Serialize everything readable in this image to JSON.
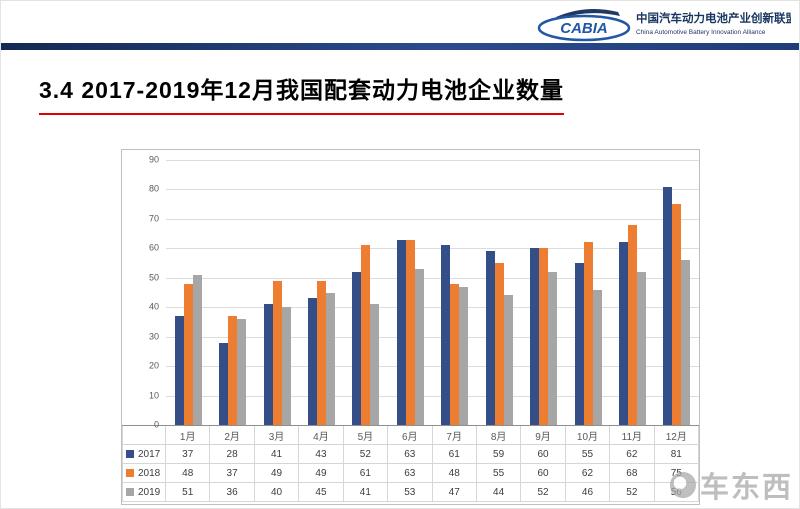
{
  "header": {
    "logo_acronym": "CABIA",
    "org_name_cn": "中国汽车动力电池产业创新联盟",
    "org_name_en": "China Automotive Battery Innovation Alliance"
  },
  "title": "3.4 2017-2019年12月我国配套动力电池企业数量",
  "chart_data": {
    "type": "bar",
    "title": "2017-2019年12月我国配套动力电池企业数量",
    "categories": [
      "1月",
      "2月",
      "3月",
      "4月",
      "5月",
      "6月",
      "7月",
      "8月",
      "9月",
      "10月",
      "11月",
      "12月"
    ],
    "series": [
      {
        "name": "2017",
        "color": "#344e87",
        "values": [
          37,
          28,
          41,
          43,
          52,
          63,
          61,
          59,
          60,
          55,
          62,
          81
        ]
      },
      {
        "name": "2018",
        "color": "#ed7d31",
        "values": [
          48,
          37,
          49,
          49,
          61,
          63,
          48,
          55,
          60,
          62,
          68,
          75
        ]
      },
      {
        "name": "2019",
        "color": "#a6a6a6",
        "values": [
          51,
          36,
          40,
          45,
          41,
          53,
          47,
          44,
          52,
          46,
          52,
          56
        ]
      }
    ],
    "xlabel": "",
    "ylabel": "",
    "ylim": [
      0,
      90
    ],
    "ytick_step": 10,
    "grid": true,
    "legend_position": "data-table-left",
    "data_table": true
  },
  "colors": {
    "accent_bar": "#1f3d77",
    "title_underline": "#e00000",
    "logo_blue": "#2157a4"
  },
  "watermark": {
    "text": "车东西"
  }
}
